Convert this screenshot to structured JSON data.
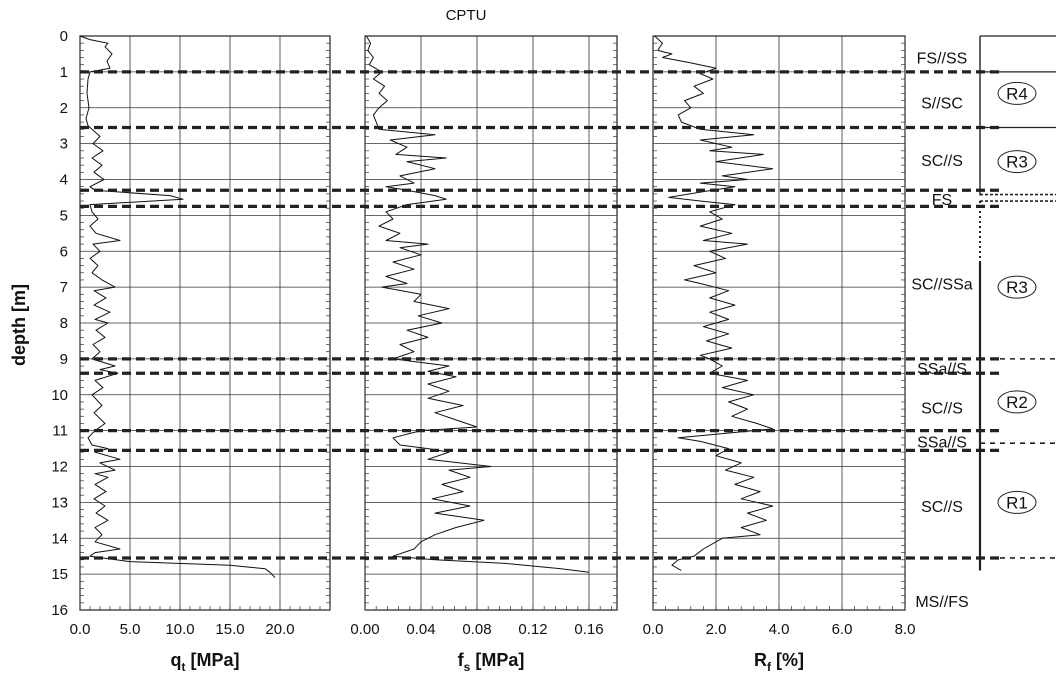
{
  "chart_data": {
    "type": "line",
    "title": "CPTU",
    "ylabel": "depth [m]",
    "ylim": [
      0,
      16
    ],
    "yticks": [
      0,
      1,
      2,
      3,
      4,
      5,
      6,
      7,
      8,
      9,
      10,
      11,
      12,
      13,
      14,
      15,
      16
    ],
    "yticks_text": [
      "0",
      "1",
      "2",
      "3",
      "4",
      "5",
      "6",
      "7",
      "8",
      "9",
      "10",
      "11",
      "12",
      "13",
      "14",
      "15",
      "16"
    ],
    "grid": true,
    "panels": [
      {
        "id": "qt",
        "xlabel_main": "q",
        "xlabel_sub": "t",
        "xlabel_unit": " [MPa]",
        "xlim": [
          0,
          25
        ],
        "xticks": [
          0,
          5,
          10,
          15,
          20
        ],
        "xticks_text": [
          "0.0",
          "5.0",
          "10.0",
          "15.0",
          "20.0"
        ],
        "profile": [
          [
            0.0,
            0.0
          ],
          [
            1.0,
            0.1
          ],
          [
            2.8,
            0.2
          ],
          [
            2.5,
            0.3
          ],
          [
            3.2,
            0.5
          ],
          [
            2.7,
            0.7
          ],
          [
            3.0,
            0.9
          ],
          [
            1.0,
            1.0
          ],
          [
            0.8,
            1.2
          ],
          [
            0.7,
            1.6
          ],
          [
            0.9,
            2.0
          ],
          [
            0.6,
            2.3
          ],
          [
            0.8,
            2.5
          ],
          [
            1.2,
            2.6
          ],
          [
            2.0,
            2.8
          ],
          [
            1.3,
            3.0
          ],
          [
            2.3,
            3.2
          ],
          [
            1.2,
            3.4
          ],
          [
            2.2,
            3.6
          ],
          [
            1.4,
            3.8
          ],
          [
            2.4,
            4.0
          ],
          [
            1.0,
            4.2
          ],
          [
            1.5,
            4.3
          ],
          [
            9.0,
            4.45
          ],
          [
            10.3,
            4.55
          ],
          [
            1.0,
            4.7
          ],
          [
            1.2,
            4.9
          ],
          [
            1.8,
            5.1
          ],
          [
            1.0,
            5.3
          ],
          [
            1.6,
            5.5
          ],
          [
            4.0,
            5.7
          ],
          [
            1.3,
            5.8
          ],
          [
            2.0,
            6.0
          ],
          [
            1.0,
            6.2
          ],
          [
            1.8,
            6.4
          ],
          [
            1.2,
            6.6
          ],
          [
            2.2,
            6.8
          ],
          [
            3.5,
            7.0
          ],
          [
            1.4,
            7.1
          ],
          [
            2.6,
            7.3
          ],
          [
            1.4,
            7.5
          ],
          [
            3.0,
            7.7
          ],
          [
            1.5,
            7.9
          ],
          [
            2.8,
            8.0
          ],
          [
            1.6,
            8.2
          ],
          [
            2.5,
            8.4
          ],
          [
            1.3,
            8.6
          ],
          [
            2.0,
            8.8
          ],
          [
            1.2,
            9.0
          ],
          [
            3.5,
            9.2
          ],
          [
            2.0,
            9.3
          ],
          [
            3.8,
            9.4
          ],
          [
            1.5,
            9.6
          ],
          [
            2.3,
            9.8
          ],
          [
            1.2,
            10.0
          ],
          [
            2.2,
            10.3
          ],
          [
            1.4,
            10.5
          ],
          [
            2.5,
            10.8
          ],
          [
            1.5,
            11.0
          ],
          [
            0.8,
            11.2
          ],
          [
            1.2,
            11.4
          ],
          [
            2.8,
            11.5
          ],
          [
            1.5,
            11.6
          ],
          [
            4.0,
            11.8
          ],
          [
            2.0,
            11.9
          ],
          [
            3.5,
            12.1
          ],
          [
            1.5,
            12.2
          ],
          [
            2.8,
            12.3
          ],
          [
            1.5,
            12.5
          ],
          [
            2.6,
            12.7
          ],
          [
            1.4,
            12.9
          ],
          [
            2.5,
            13.1
          ],
          [
            1.6,
            13.3
          ],
          [
            2.8,
            13.5
          ],
          [
            1.5,
            13.7
          ],
          [
            2.2,
            13.9
          ],
          [
            1.5,
            14.1
          ],
          [
            4.0,
            14.3
          ],
          [
            1.5,
            14.4
          ],
          [
            1.0,
            14.5
          ],
          [
            5.0,
            14.65
          ],
          [
            15.0,
            14.75
          ],
          [
            18.5,
            14.85
          ],
          [
            19.0,
            14.95
          ],
          [
            19.5,
            15.1
          ]
        ]
      },
      {
        "id": "fs",
        "xlabel_main": "f",
        "xlabel_sub": "s",
        "xlabel_unit": " [MPa]",
        "xlim": [
          0,
          0.18
        ],
        "xticks": [
          0,
          0.04,
          0.08,
          0.12,
          0.16
        ],
        "xticks_text": [
          "0.00",
          "0.04",
          "0.08",
          "0.12",
          "0.16"
        ],
        "profile": [
          [
            0.001,
            0.0
          ],
          [
            0.004,
            0.2
          ],
          [
            0.002,
            0.4
          ],
          [
            0.006,
            0.6
          ],
          [
            0.003,
            0.8
          ],
          [
            0.012,
            1.0
          ],
          [
            0.006,
            1.2
          ],
          [
            0.014,
            1.4
          ],
          [
            0.01,
            1.6
          ],
          [
            0.016,
            1.8
          ],
          [
            0.01,
            2.0
          ],
          [
            0.006,
            2.2
          ],
          [
            0.008,
            2.4
          ],
          [
            0.01,
            2.6
          ],
          [
            0.05,
            2.75
          ],
          [
            0.018,
            2.9
          ],
          [
            0.03,
            3.1
          ],
          [
            0.022,
            3.3
          ],
          [
            0.058,
            3.4
          ],
          [
            0.03,
            3.5
          ],
          [
            0.05,
            3.7
          ],
          [
            0.025,
            3.9
          ],
          [
            0.035,
            4.1
          ],
          [
            0.015,
            4.2
          ],
          [
            0.03,
            4.3
          ],
          [
            0.05,
            4.45
          ],
          [
            0.058,
            4.55
          ],
          [
            0.03,
            4.7
          ],
          [
            0.015,
            4.9
          ],
          [
            0.02,
            5.1
          ],
          [
            0.01,
            5.3
          ],
          [
            0.025,
            5.5
          ],
          [
            0.015,
            5.7
          ],
          [
            0.045,
            5.8
          ],
          [
            0.025,
            5.9
          ],
          [
            0.04,
            6.1
          ],
          [
            0.02,
            6.3
          ],
          [
            0.035,
            6.5
          ],
          [
            0.015,
            6.7
          ],
          [
            0.03,
            6.9
          ],
          [
            0.012,
            7.0
          ],
          [
            0.04,
            7.2
          ],
          [
            0.035,
            7.4
          ],
          [
            0.06,
            7.6
          ],
          [
            0.038,
            7.8
          ],
          [
            0.055,
            8.0
          ],
          [
            0.03,
            8.2
          ],
          [
            0.045,
            8.4
          ],
          [
            0.025,
            8.6
          ],
          [
            0.035,
            8.8
          ],
          [
            0.02,
            9.0
          ],
          [
            0.06,
            9.2
          ],
          [
            0.045,
            9.35
          ],
          [
            0.065,
            9.5
          ],
          [
            0.045,
            9.7
          ],
          [
            0.06,
            9.9
          ],
          [
            0.045,
            10.1
          ],
          [
            0.07,
            10.3
          ],
          [
            0.05,
            10.5
          ],
          [
            0.065,
            10.7
          ],
          [
            0.08,
            10.9
          ],
          [
            0.04,
            11.0
          ],
          [
            0.02,
            11.2
          ],
          [
            0.025,
            11.4
          ],
          [
            0.045,
            11.5
          ],
          [
            0.06,
            11.6
          ],
          [
            0.045,
            11.8
          ],
          [
            0.09,
            12.0
          ],
          [
            0.06,
            12.1
          ],
          [
            0.075,
            12.3
          ],
          [
            0.055,
            12.5
          ],
          [
            0.07,
            12.7
          ],
          [
            0.048,
            12.9
          ],
          [
            0.075,
            13.1
          ],
          [
            0.05,
            13.3
          ],
          [
            0.085,
            13.5
          ],
          [
            0.065,
            13.7
          ],
          [
            0.05,
            13.9
          ],
          [
            0.04,
            14.1
          ],
          [
            0.035,
            14.3
          ],
          [
            0.02,
            14.5
          ],
          [
            0.05,
            14.6
          ],
          [
            0.1,
            14.7
          ],
          [
            0.14,
            14.85
          ],
          [
            0.16,
            14.95
          ]
        ]
      },
      {
        "id": "rf",
        "xlabel_main": "R",
        "xlabel_sub": "f",
        "xlabel_unit": " [%]",
        "xlim": [
          0,
          8
        ],
        "xticks": [
          0,
          2,
          4,
          6,
          8
        ],
        "xticks_text": [
          "0.0",
          "2.0",
          "4.0",
          "6.0",
          "8.0"
        ],
        "profile": [
          [
            0.05,
            0.0
          ],
          [
            0.3,
            0.2
          ],
          [
            0.15,
            0.4
          ],
          [
            0.6,
            0.5
          ],
          [
            0.3,
            0.6
          ],
          [
            1.2,
            0.75
          ],
          [
            2.0,
            0.9
          ],
          [
            1.5,
            1.05
          ],
          [
            1.9,
            1.2
          ],
          [
            1.3,
            1.4
          ],
          [
            1.6,
            1.6
          ],
          [
            1.0,
            1.8
          ],
          [
            1.2,
            2.0
          ],
          [
            0.8,
            2.2
          ],
          [
            0.9,
            2.4
          ],
          [
            1.5,
            2.6
          ],
          [
            3.2,
            2.75
          ],
          [
            1.5,
            2.9
          ],
          [
            2.5,
            3.1
          ],
          [
            1.8,
            3.2
          ],
          [
            3.5,
            3.3
          ],
          [
            2.0,
            3.5
          ],
          [
            3.8,
            3.7
          ],
          [
            2.2,
            3.9
          ],
          [
            3.0,
            4.0
          ],
          [
            1.5,
            4.1
          ],
          [
            2.6,
            4.2
          ],
          [
            1.5,
            4.35
          ],
          [
            0.5,
            4.5
          ],
          [
            1.5,
            4.6
          ],
          [
            2.6,
            4.7
          ],
          [
            1.8,
            4.9
          ],
          [
            2.2,
            5.1
          ],
          [
            1.5,
            5.3
          ],
          [
            2.5,
            5.5
          ],
          [
            1.6,
            5.7
          ],
          [
            3.0,
            5.8
          ],
          [
            1.8,
            6.0
          ],
          [
            2.3,
            6.2
          ],
          [
            1.3,
            6.4
          ],
          [
            2.0,
            6.6
          ],
          [
            1.0,
            6.8
          ],
          [
            1.5,
            6.9
          ],
          [
            2.4,
            7.1
          ],
          [
            1.8,
            7.3
          ],
          [
            2.6,
            7.5
          ],
          [
            1.8,
            7.7
          ],
          [
            2.4,
            7.9
          ],
          [
            1.6,
            8.1
          ],
          [
            2.4,
            8.3
          ],
          [
            1.7,
            8.5
          ],
          [
            2.5,
            8.7
          ],
          [
            1.5,
            8.9
          ],
          [
            1.8,
            9.0
          ],
          [
            2.2,
            9.2
          ],
          [
            1.8,
            9.4
          ],
          [
            3.0,
            9.6
          ],
          [
            2.2,
            9.8
          ],
          [
            3.2,
            10.0
          ],
          [
            2.4,
            10.2
          ],
          [
            3.0,
            10.4
          ],
          [
            2.5,
            10.6
          ],
          [
            3.3,
            10.8
          ],
          [
            3.8,
            10.95
          ],
          [
            2.0,
            11.1
          ],
          [
            0.8,
            11.2
          ],
          [
            1.5,
            11.3
          ],
          [
            2.4,
            11.5
          ],
          [
            2.0,
            11.7
          ],
          [
            2.8,
            11.9
          ],
          [
            2.3,
            12.1
          ],
          [
            3.2,
            12.3
          ],
          [
            2.6,
            12.5
          ],
          [
            3.4,
            12.7
          ],
          [
            2.8,
            12.9
          ],
          [
            3.8,
            13.1
          ],
          [
            3.0,
            13.3
          ],
          [
            3.6,
            13.5
          ],
          [
            2.8,
            13.7
          ],
          [
            3.4,
            13.9
          ],
          [
            2.2,
            14.0
          ],
          [
            2.0,
            14.1
          ],
          [
            1.6,
            14.3
          ],
          [
            1.3,
            14.5
          ],
          [
            0.8,
            14.6
          ],
          [
            0.6,
            14.75
          ],
          [
            0.9,
            14.9
          ]
        ]
      }
    ],
    "boundaries": [
      1.0,
      2.55,
      4.3,
      4.75,
      9.0,
      9.4,
      11.0,
      11.55,
      14.55
    ],
    "layer_labels": [
      {
        "text": "FS//SS",
        "depth": 0.6
      },
      {
        "text": "S//SC",
        "depth": 1.85
      },
      {
        "text": "SC//S",
        "depth": 3.45
      },
      {
        "text": "FS",
        "depth": 4.55
      },
      {
        "text": "SC//SSa",
        "depth": 6.9
      },
      {
        "text": "SSa//S",
        "depth": 9.25
      },
      {
        "text": "SC//S",
        "depth": 10.35
      },
      {
        "text": "SSa//S",
        "depth": 11.3
      },
      {
        "text": "SC//S",
        "depth": 13.1
      },
      {
        "text": "MS//FS",
        "depth": 15.75
      }
    ],
    "zones": [
      {
        "text": "R4",
        "depth": 1.6
      },
      {
        "text": "R3",
        "depth": 3.5
      },
      {
        "text": "R3",
        "depth": 7.0
      },
      {
        "text": "R2",
        "depth": 10.2
      },
      {
        "text": "R1",
        "depth": 13.0
      }
    ]
  }
}
